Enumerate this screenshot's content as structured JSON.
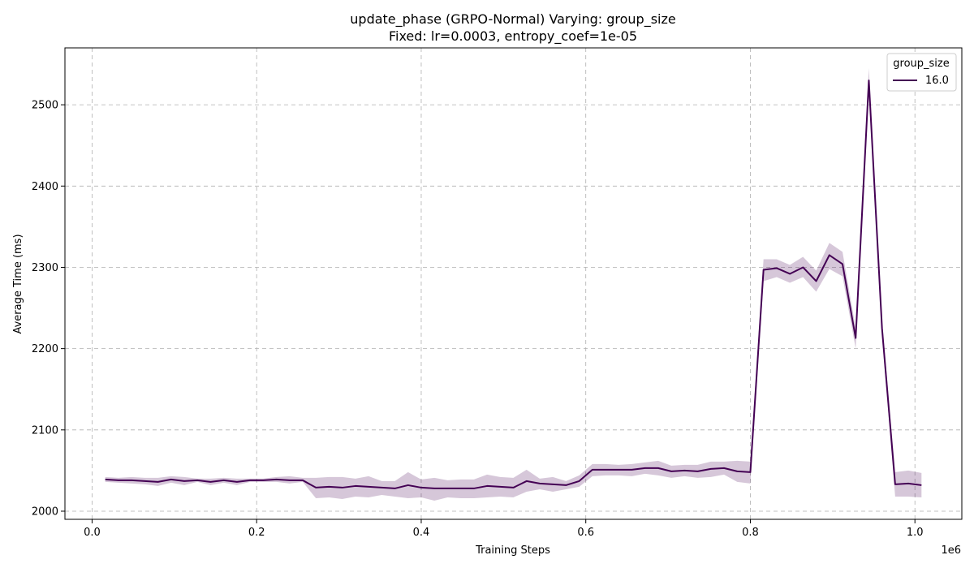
{
  "chart_data": {
    "type": "line",
    "title": "update_phase (GRPO-Normal) Varying: group_size",
    "subtitle": "Fixed: lr=0.0003, entropy_coef=1e-05",
    "xlabel": "Training Steps",
    "ylabel": "Average Time (ms)",
    "x_offset_label": "1e6",
    "xlim": [
      -0.033,
      1.057
    ],
    "ylim": [
      1990,
      2570
    ],
    "x_ticks": [
      0.0,
      0.2,
      0.4,
      0.6,
      0.8,
      1.0
    ],
    "x_tick_labels": [
      "0.0",
      "0.2",
      "0.4",
      "0.6",
      "0.8",
      "1.0"
    ],
    "y_ticks": [
      2000,
      2100,
      2200,
      2300,
      2400,
      2500
    ],
    "y_tick_labels": [
      "2000",
      "2100",
      "2200",
      "2300",
      "2400",
      "2500"
    ],
    "grid": true,
    "legend": {
      "title": "group_size",
      "placement": "top-right"
    },
    "series": [
      {
        "name": "16.0",
        "color": "#440154",
        "x": [
          0.016,
          0.032,
          0.048,
          0.064,
          0.08,
          0.096,
          0.112,
          0.128,
          0.144,
          0.16,
          0.176,
          0.192,
          0.208,
          0.224,
          0.24,
          0.256,
          0.272,
          0.288,
          0.304,
          0.32,
          0.336,
          0.352,
          0.368,
          0.384,
          0.4,
          0.416,
          0.432,
          0.448,
          0.464,
          0.48,
          0.496,
          0.512,
          0.528,
          0.544,
          0.56,
          0.576,
          0.592,
          0.608,
          0.624,
          0.64,
          0.656,
          0.672,
          0.688,
          0.704,
          0.72,
          0.736,
          0.752,
          0.768,
          0.784,
          0.8,
          0.816,
          0.832,
          0.848,
          0.864,
          0.88,
          0.896,
          0.912,
          0.928,
          0.944,
          0.96,
          0.976,
          0.992,
          1.008
        ],
        "y": [
          2039,
          2038,
          2038,
          2037,
          2036,
          2039,
          2037,
          2038,
          2036,
          2038,
          2036,
          2038,
          2038,
          2039,
          2038,
          2038,
          2029,
          2030,
          2029,
          2031,
          2030,
          2029,
          2028,
          2032,
          2029,
          2028,
          2028,
          2028,
          2028,
          2031,
          2030,
          2029,
          2037,
          2034,
          2033,
          2032,
          2037,
          2051,
          2051,
          2051,
          2051,
          2053,
          2053,
          2049,
          2050,
          2049,
          2052,
          2053,
          2049,
          2048,
          2297,
          2299,
          2292,
          2300,
          2283,
          2315,
          2304,
          2213,
          2530,
          2225,
          2033,
          2034,
          2032
        ],
        "lower": [
          2036,
          2035,
          2034,
          2033,
          2031,
          2035,
          2032,
          2036,
          2032,
          2035,
          2032,
          2036,
          2036,
          2036,
          2034,
          2036,
          2016,
          2017,
          2015,
          2018,
          2017,
          2020,
          2018,
          2016,
          2017,
          2013,
          2017,
          2016,
          2016,
          2017,
          2018,
          2017,
          2024,
          2027,
          2024,
          2027,
          2030,
          2043,
          2044,
          2044,
          2043,
          2046,
          2044,
          2041,
          2043,
          2041,
          2042,
          2045,
          2036,
          2034,
          2283,
          2288,
          2281,
          2288,
          2270,
          2298,
          2289,
          2200,
          2515,
          2215,
          2018,
          2018,
          2017
        ],
        "upper": [
          2042,
          2041,
          2042,
          2041,
          2041,
          2043,
          2042,
          2040,
          2040,
          2041,
          2040,
          2040,
          2040,
          2042,
          2043,
          2041,
          2041,
          2042,
          2042,
          2040,
          2043,
          2037,
          2037,
          2048,
          2039,
          2041,
          2038,
          2039,
          2039,
          2045,
          2042,
          2041,
          2051,
          2040,
          2042,
          2037,
          2044,
          2058,
          2058,
          2057,
          2058,
          2060,
          2062,
          2056,
          2057,
          2057,
          2061,
          2061,
          2062,
          2061,
          2310,
          2310,
          2303,
          2313,
          2296,
          2330,
          2319,
          2225,
          2545,
          2235,
          2048,
          2050,
          2047
        ]
      }
    ]
  }
}
